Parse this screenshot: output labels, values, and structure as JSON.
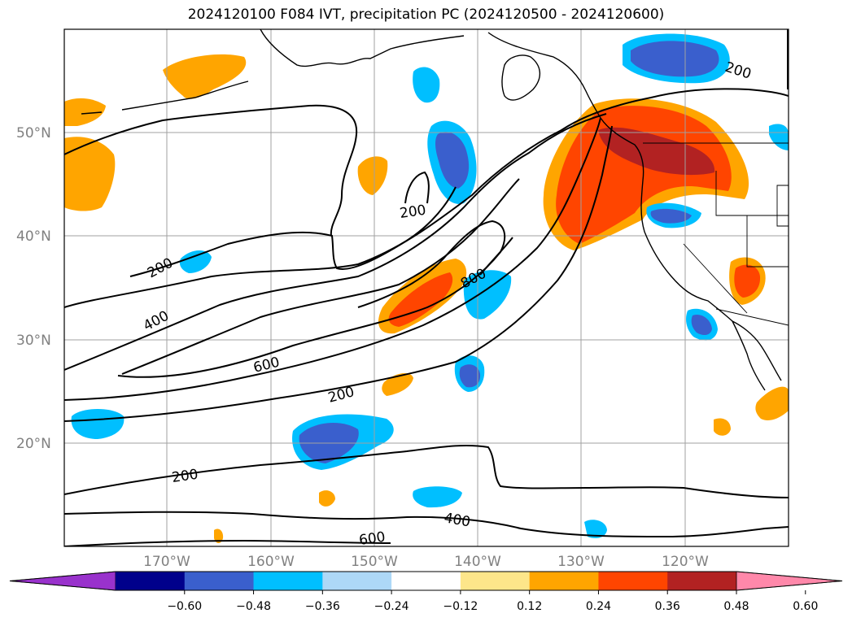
{
  "title": "2024120100 F084 IVT, precipitation PC (2024120500 - 2024120600)",
  "map": {
    "lat_labels": [
      "50°N",
      "40°N",
      "30°N",
      "20°N"
    ],
    "lon_labels": [
      "170°W",
      "160°W",
      "150°W",
      "140°W",
      "130°W",
      "120°W"
    ],
    "contour_labels": [
      {
        "text": "200",
        "level": 200
      },
      {
        "text": "200",
        "level": 200
      },
      {
        "text": "200",
        "level": 200
      },
      {
        "text": "400",
        "level": 400
      },
      {
        "text": "600",
        "level": 600
      },
      {
        "text": "800",
        "level": 800
      },
      {
        "text": "200",
        "level": 200
      },
      {
        "text": "200",
        "level": 200
      },
      {
        "text": "400",
        "level": 400
      },
      {
        "text": "600",
        "level": 600
      }
    ]
  },
  "colorbar": {
    "ticks": [
      "−0.60",
      "−0.48",
      "−0.36",
      "−0.24",
      "−0.12",
      "0.12",
      "0.24",
      "0.36",
      "0.48",
      "0.60"
    ],
    "colors": [
      "#9932cc",
      "#00008b",
      "#3a5fcd",
      "#00bfff",
      "#add8f7",
      "#ffffff",
      "#fde68a",
      "#ffa500",
      "#ff4500",
      "#b22222",
      "#ff88aa"
    ]
  }
}
